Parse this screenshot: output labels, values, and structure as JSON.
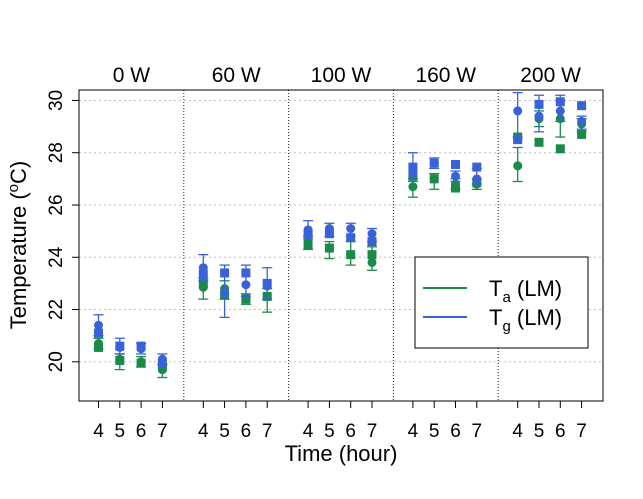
{
  "chart_data": {
    "type": "scatter",
    "xlabel": "Time (hour)",
    "ylabel_base": "Temperature (",
    "ylabel_sup": "o",
    "ylabel_tail": "C)",
    "ylim": [
      18.5,
      30.4
    ],
    "yticks": [
      20,
      22,
      24,
      26,
      28,
      30
    ],
    "grid": true,
    "legend_placement": "right",
    "legend": [
      {
        "name": "T",
        "sub": "a",
        "tail": " (LM)",
        "color": "#1a8a4a"
      },
      {
        "name": "T",
        "sub": "g",
        "tail": " (LM)",
        "color": "#3a62d8"
      }
    ],
    "x_categories": [
      "4",
      "5",
      "6",
      "7"
    ],
    "colors": {
      "ta": "#1a8a4a",
      "tg": "#3a62d8",
      "grid": "#bdbdbd"
    },
    "panels": [
      {
        "label": "0 W",
        "ta_circle": [
          {
            "y": 20.7,
            "lo": 20.5,
            "hi": 20.9
          },
          {
            "y": 20.1,
            "lo": 19.7,
            "hi": 20.3
          },
          {
            "y": 20.0,
            "lo": 19.8,
            "hi": 20.2
          },
          {
            "y": 19.7,
            "lo": 19.4,
            "hi": 19.9
          }
        ],
        "ta_square": [
          {
            "y": 20.55
          },
          {
            "y": 20.05
          },
          {
            "y": 19.95
          },
          {
            "y": 19.8
          }
        ],
        "tg_circle": [
          {
            "y": 21.4,
            "lo": 21.0,
            "hi": 21.8
          },
          {
            "y": 20.55,
            "lo": 20.3,
            "hi": 20.9
          },
          {
            "y": 20.5,
            "lo": 20.3,
            "hi": 20.7
          },
          {
            "y": 20.1,
            "lo": 19.9,
            "hi": 20.3
          }
        ],
        "tg_square": [
          {
            "y": 21.1
          },
          {
            "y": 20.6
          },
          {
            "y": 20.6
          },
          {
            "y": 19.95
          }
        ]
      },
      {
        "label": "60 W",
        "ta_circle": [
          {
            "y": 22.85,
            "lo": 22.4,
            "hi": 23.2
          },
          {
            "y": 22.8,
            "lo": 22.4,
            "hi": 23.1
          },
          {
            "y": 22.4,
            "lo": 22.2,
            "hi": 22.6
          },
          {
            "y": 22.5,
            "lo": 21.9,
            "hi": 22.8
          }
        ],
        "ta_square": [
          {
            "y": 23.0
          },
          {
            "y": 22.55
          },
          {
            "y": 22.4
          },
          {
            "y": 22.5
          }
        ],
        "tg_circle": [
          {
            "y": 23.6,
            "lo": 23.1,
            "hi": 24.1
          },
          {
            "y": 22.65,
            "lo": 21.7,
            "hi": 23.7
          },
          {
            "y": 22.95,
            "lo": 22.5,
            "hi": 23.7
          },
          {
            "y": 22.9,
            "lo": 22.4,
            "hi": 23.6
          }
        ],
        "tg_square": [
          {
            "y": 23.35
          },
          {
            "y": 23.4
          },
          {
            "y": 23.4
          },
          {
            "y": 23.0
          }
        ]
      },
      {
        "label": "100 W",
        "ta_circle": [
          {
            "y": 24.6,
            "lo": 24.3,
            "hi": 24.8
          },
          {
            "y": 24.35,
            "lo": 23.95,
            "hi": 24.6
          },
          {
            "y": 24.1,
            "lo": 23.7,
            "hi": 24.6
          },
          {
            "y": 23.8,
            "lo": 23.5,
            "hi": 24.4
          }
        ],
        "ta_square": [
          {
            "y": 24.45
          },
          {
            "y": 24.35
          },
          {
            "y": 24.1
          },
          {
            "y": 24.1
          }
        ],
        "tg_circle": [
          {
            "y": 25.05,
            "lo": 24.7,
            "hi": 25.4
          },
          {
            "y": 25.1,
            "lo": 24.8,
            "hi": 25.3
          },
          {
            "y": 25.1,
            "lo": 24.8,
            "hi": 25.3
          },
          {
            "y": 24.9,
            "lo": 24.6,
            "hi": 25.1
          }
        ],
        "tg_square": [
          {
            "y": 24.9
          },
          {
            "y": 24.9
          },
          {
            "y": 24.75
          },
          {
            "y": 24.6
          }
        ]
      },
      {
        "label": "160 W",
        "ta_circle": [
          {
            "y": 26.7,
            "lo": 26.3,
            "hi": 27.0
          },
          {
            "y": 27.0,
            "lo": 26.6,
            "hi": 27.2
          },
          {
            "y": 26.8,
            "lo": 26.6,
            "hi": 27.0
          },
          {
            "y": 26.8,
            "lo": 26.6,
            "hi": 27.0
          }
        ],
        "ta_square": [
          {
            "y": 27.1
          },
          {
            "y": 27.0
          },
          {
            "y": 26.65
          },
          {
            "y": 26.85
          }
        ],
        "tg_circle": [
          {
            "y": 27.2,
            "lo": 26.9,
            "hi": 28.0
          },
          {
            "y": 27.6,
            "lo": 27.4,
            "hi": 27.8
          },
          {
            "y": 27.1,
            "lo": 26.9,
            "hi": 27.3
          },
          {
            "y": 27.0,
            "lo": 26.8,
            "hi": 27.4
          }
        ],
        "tg_square": [
          {
            "y": 27.45
          },
          {
            "y": 27.6
          },
          {
            "y": 27.55
          },
          {
            "y": 27.45
          }
        ]
      },
      {
        "label": "200 W",
        "ta_circle": [
          {
            "y": 27.5,
            "lo": 26.9,
            "hi": 28.2
          },
          {
            "y": 29.3,
            "lo": 29.0,
            "hi": 29.6
          },
          {
            "y": 29.3,
            "lo": 28.6,
            "hi": 30.0
          },
          {
            "y": 29.1,
            "lo": 28.8,
            "hi": 29.3
          }
        ],
        "ta_square": [
          {
            "y": 28.6
          },
          {
            "y": 28.4
          },
          {
            "y": 28.15
          },
          {
            "y": 28.7
          }
        ],
        "tg_circle": [
          {
            "y": 29.6,
            "lo": 28.6,
            "hi": 30.3
          },
          {
            "y": 29.4,
            "lo": 28.8,
            "hi": 30.2
          },
          {
            "y": 29.6,
            "lo": 29.2,
            "hi": 30.2
          },
          {
            "y": 29.2,
            "lo": 28.9,
            "hi": 29.4
          }
        ],
        "tg_square": [
          {
            "y": 28.5
          },
          {
            "y": 29.85
          },
          {
            "y": 29.95
          },
          {
            "y": 29.8
          }
        ]
      }
    ]
  }
}
